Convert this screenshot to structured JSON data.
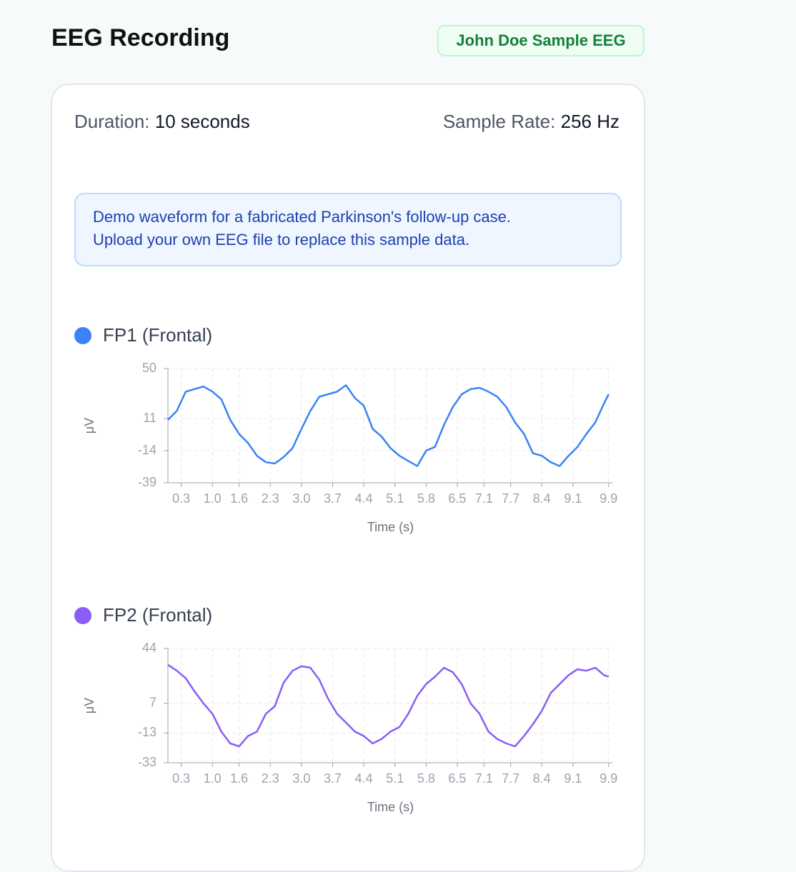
{
  "header": {
    "title": "EEG Recording",
    "badge": "John Doe Sample EEG"
  },
  "info": {
    "duration_label": "Duration:",
    "duration_value": "10 seconds",
    "rate_label": "Sample Rate:",
    "rate_value": "256 Hz"
  },
  "notice": [
    "Demo waveform for a fabricated Parkinson's follow-up case.",
    "Upload your own EEG file to replace this sample data."
  ],
  "chart_data": [
    {
      "type": "line",
      "title": "FP1 (Frontal)",
      "color": "#3b82f6",
      "ylabel": "μV",
      "xlabel": "Time (s)",
      "x": [
        0,
        0.2,
        0.4,
        0.6,
        0.8,
        1,
        1.2,
        1.4,
        1.6,
        1.8,
        2,
        2.2,
        2.4,
        2.6,
        2.8,
        3,
        3.2,
        3.4,
        3.6,
        3.8,
        4,
        4.2,
        4.4,
        4.6,
        4.8,
        5,
        5.2,
        5.4,
        5.6,
        5.8,
        6,
        6.2,
        6.4,
        6.6,
        6.8,
        7,
        7.2,
        7.4,
        7.6,
        7.8,
        8,
        8.2,
        8.4,
        8.6,
        8.8,
        9,
        9.2,
        9.4,
        9.6,
        9.8,
        9.9
      ],
      "values": [
        10,
        17,
        32,
        34,
        36,
        32,
        26,
        10,
        -1,
        -8,
        -18,
        -23,
        -24,
        -19,
        -12,
        3,
        17,
        28,
        30,
        32,
        37,
        27,
        21,
        3,
        -3,
        -12,
        -18,
        -22,
        -26,
        -14,
        -11,
        6,
        20,
        30,
        34,
        35,
        32,
        28,
        20,
        8,
        -1,
        -16,
        -18,
        -23,
        -26,
        -18,
        -11,
        -1,
        8,
        23,
        30
      ],
      "xlim": [
        0,
        10
      ],
      "ylim": [
        -39,
        50
      ],
      "yticks": [
        -39,
        -14,
        11,
        50
      ],
      "xticks": [
        0.3,
        {
          "value": 1,
          "label": "1.0"
        },
        1.6,
        2.3,
        {
          "value": 3,
          "label": "3.0"
        },
        3.7,
        4.4,
        5.1,
        5.8,
        6.5,
        7.1,
        7.7,
        8.4,
        9.1,
        9.9
      ],
      "grid": true
    },
    {
      "type": "line",
      "title": "FP2 (Frontal)",
      "color": "#8b5cf6",
      "ylabel": "μV",
      "xlabel": "Time (s)",
      "x": [
        0,
        0.2,
        0.4,
        0.6,
        0.8,
        1,
        1.2,
        1.4,
        1.6,
        1.8,
        2,
        2.2,
        2.4,
        2.6,
        2.8,
        3,
        3.2,
        3.4,
        3.6,
        3.8,
        4,
        4.2,
        4.4,
        4.6,
        4.8,
        5,
        5.2,
        5.4,
        5.6,
        5.8,
        6,
        6.2,
        6.4,
        6.6,
        6.8,
        7,
        7.2,
        7.4,
        7.6,
        7.8,
        8,
        8.2,
        8.4,
        8.6,
        8.8,
        9,
        9.2,
        9.4,
        9.6,
        9.8,
        9.9
      ],
      "values": [
        33,
        29,
        24,
        15,
        7,
        0,
        -12,
        -20,
        -22,
        -15,
        -12,
        0,
        5,
        21,
        29,
        32,
        31,
        23,
        10,
        0,
        -6,
        -12,
        -15,
        -20,
        -17,
        -12,
        -9,
        0,
        12,
        20,
        25,
        31,
        28,
        20,
        7,
        0,
        -12,
        -17,
        -20,
        -22,
        -15,
        -7,
        2,
        14,
        20,
        26,
        30,
        29,
        31,
        26,
        25
      ],
      "xlim": [
        0,
        10
      ],
      "ylim": [
        -33,
        44
      ],
      "yticks": [
        -33,
        -13,
        7,
        44
      ],
      "xticks": [
        0.3,
        {
          "value": 1,
          "label": "1.0"
        },
        1.6,
        2.3,
        {
          "value": 3,
          "label": "3.0"
        },
        3.7,
        4.4,
        5.1,
        5.8,
        6.5,
        7.1,
        7.7,
        8.4,
        9.1,
        9.9
      ],
      "grid": true
    }
  ]
}
